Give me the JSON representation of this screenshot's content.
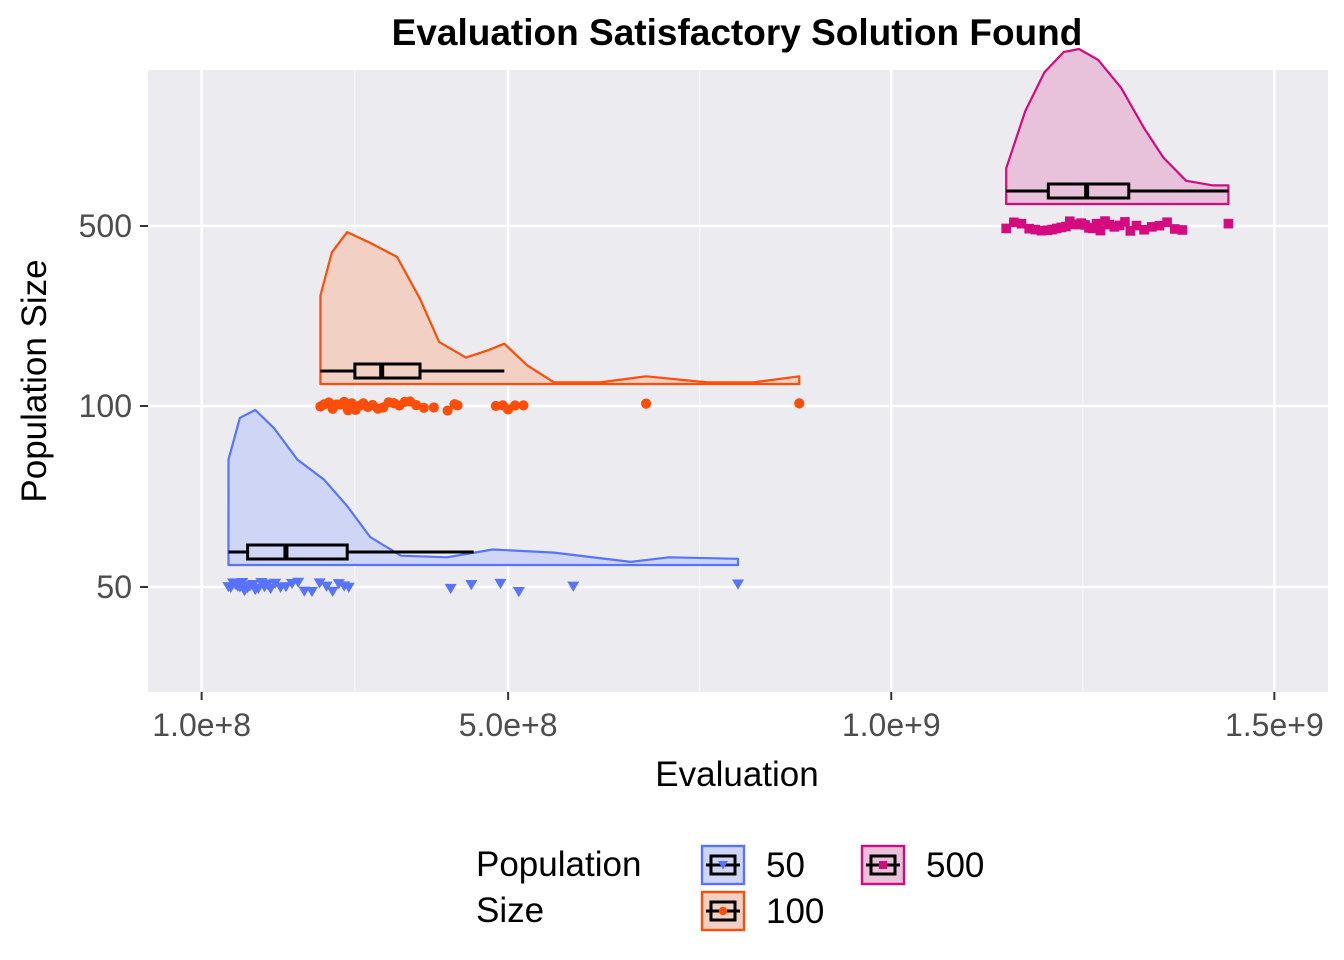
{
  "chart_data": {
    "type": "raincloud",
    "title": "Evaluation Satisfactory Solution Found",
    "xlabel": "Evaluation",
    "ylabel": "Population Size",
    "x_ticks": [
      {
        "value": 100000000,
        "label": "1.0e+8"
      },
      {
        "value": 500000000,
        "label": "5.0e+8"
      },
      {
        "value": 1000000000,
        "label": "1.0e+9"
      },
      {
        "value": 1500000000,
        "label": "1.5e+9"
      }
    ],
    "xlim": [
      30000000,
      1570000000
    ],
    "y_categories": [
      "50",
      "100",
      "500"
    ],
    "grid": true,
    "legend": {
      "title_lines": [
        "Population",
        "Size"
      ],
      "position": "bottom",
      "entries": [
        {
          "label": "50",
          "series": "50"
        },
        {
          "label": "100",
          "series": "100"
        },
        {
          "label": "500",
          "series": "500"
        }
      ]
    },
    "series": [
      {
        "name": "50",
        "color": "#5773ff",
        "fill": "#cfd6f5",
        "shape": "triangle-down",
        "box": {
          "whisker_low": 135000000,
          "q1": 160000000,
          "median": 210000000,
          "q3": 290000000,
          "whisker_high": 455000000
        },
        "density": [
          {
            "x": 135000000,
            "d": 0.68
          },
          {
            "x": 150000000,
            "d": 0.95
          },
          {
            "x": 170000000,
            "d": 1.0
          },
          {
            "x": 195000000,
            "d": 0.88
          },
          {
            "x": 225000000,
            "d": 0.68
          },
          {
            "x": 260000000,
            "d": 0.55
          },
          {
            "x": 290000000,
            "d": 0.38
          },
          {
            "x": 320000000,
            "d": 0.18
          },
          {
            "x": 360000000,
            "d": 0.06
          },
          {
            "x": 420000000,
            "d": 0.05
          },
          {
            "x": 480000000,
            "d": 0.1
          },
          {
            "x": 560000000,
            "d": 0.08
          },
          {
            "x": 660000000,
            "d": 0.02
          },
          {
            "x": 710000000,
            "d": 0.05
          },
          {
            "x": 800000000,
            "d": 0.04
          }
        ],
        "points": [
          135000000,
          138000000,
          141000000,
          144000000,
          147000000,
          150000000,
          153000000,
          156000000,
          160000000,
          163000000,
          167000000,
          170000000,
          174000000,
          178000000,
          182000000,
          186000000,
          190000000,
          196000000,
          203000000,
          210000000,
          218000000,
          226000000,
          234000000,
          244000000,
          254000000,
          263000000,
          271000000,
          279000000,
          286000000,
          292000000,
          425000000,
          452000000,
          490000000,
          514000000,
          585000000,
          800000000
        ]
      },
      {
        "name": "100",
        "color": "#fc4e08",
        "fill": "#f2d0c3",
        "shape": "circle",
        "box": {
          "whisker_low": 255000000,
          "q1": 300000000,
          "median": 335000000,
          "q3": 385000000,
          "whisker_high": 495000000
        },
        "density": [
          {
            "x": 255000000,
            "d": 0.57
          },
          {
            "x": 270000000,
            "d": 0.85
          },
          {
            "x": 290000000,
            "d": 0.98
          },
          {
            "x": 320000000,
            "d": 0.91
          },
          {
            "x": 355000000,
            "d": 0.82
          },
          {
            "x": 385000000,
            "d": 0.55
          },
          {
            "x": 410000000,
            "d": 0.27
          },
          {
            "x": 445000000,
            "d": 0.17
          },
          {
            "x": 475000000,
            "d": 0.22
          },
          {
            "x": 495000000,
            "d": 0.26
          },
          {
            "x": 525000000,
            "d": 0.12
          },
          {
            "x": 560000000,
            "d": 0.01
          },
          {
            "x": 620000000,
            "d": 0.01
          },
          {
            "x": 680000000,
            "d": 0.05
          },
          {
            "x": 760000000,
            "d": 0.01
          },
          {
            "x": 820000000,
            "d": 0.01
          },
          {
            "x": 880000000,
            "d": 0.05
          }
        ],
        "points": [
          255000000,
          260000000,
          266000000,
          271000000,
          276000000,
          281000000,
          286000000,
          291000000,
          296000000,
          301000000,
          306000000,
          311000000,
          317000000,
          323000000,
          330000000,
          337000000,
          344000000,
          351000000,
          358000000,
          365000000,
          372000000,
          380000000,
          390000000,
          403000000,
          421000000,
          430000000,
          434000000,
          484000000,
          493000000,
          500000000,
          509000000,
          520000000,
          680000000,
          880000000
        ]
      },
      {
        "name": "500",
        "color": "#d40a7e",
        "fill": "#e8c2db",
        "shape": "square",
        "box": {
          "whisker_low": 1150000000,
          "q1": 1205000000,
          "median": 1255000000,
          "q3": 1310000000,
          "whisker_high": 1440000000
        },
        "density": [
          {
            "x": 1150000000,
            "d": 0.23
          },
          {
            "x": 1175000000,
            "d": 0.6
          },
          {
            "x": 1200000000,
            "d": 0.85
          },
          {
            "x": 1225000000,
            "d": 0.98
          },
          {
            "x": 1245000000,
            "d": 1.0
          },
          {
            "x": 1270000000,
            "d": 0.93
          },
          {
            "x": 1300000000,
            "d": 0.75
          },
          {
            "x": 1330000000,
            "d": 0.49
          },
          {
            "x": 1355000000,
            "d": 0.3
          },
          {
            "x": 1385000000,
            "d": 0.15
          },
          {
            "x": 1420000000,
            "d": 0.12
          },
          {
            "x": 1440000000,
            "d": 0.12
          }
        ],
        "points": [
          1150000000,
          1160000000,
          1170000000,
          1180000000,
          1188000000,
          1196000000,
          1204000000,
          1210000000,
          1216000000,
          1222000000,
          1228000000,
          1233000000,
          1238000000,
          1243000000,
          1248000000,
          1253000000,
          1258000000,
          1263000000,
          1268000000,
          1273000000,
          1279000000,
          1285000000,
          1291000000,
          1298000000,
          1305000000,
          1312000000,
          1320000000,
          1330000000,
          1340000000,
          1350000000,
          1360000000,
          1370000000,
          1380000000,
          1440000000
        ]
      }
    ]
  }
}
